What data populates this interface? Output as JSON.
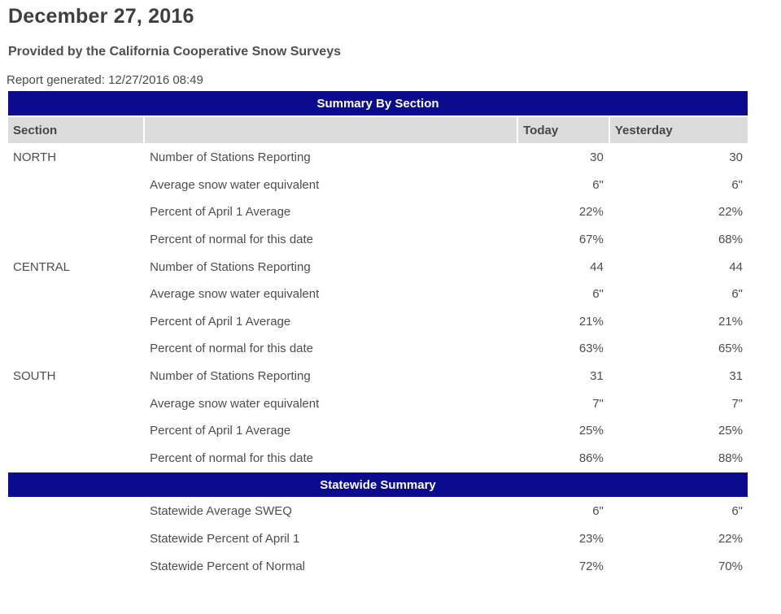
{
  "header": {
    "title": "December 27, 2016",
    "subtitle": "Provided by the California Cooperative Snow Surveys",
    "report_generated": "Report generated: 12/27/2016 08:49"
  },
  "colors": {
    "banner_bg": "#0b0b8f",
    "banner_text": "#ffffff",
    "column_header_bg": "#dcdcdc",
    "heading_text": "#3f3f3f",
    "body_text": "#4d4d4d"
  },
  "table": {
    "sections": [
      {
        "banner": "Summary By Section",
        "column_headers": [
          "Section",
          "",
          "Today",
          "Yesterday"
        ],
        "rows": [
          [
            "NORTH",
            "Number of Stations Reporting",
            "30",
            "30"
          ],
          [
            "",
            "Average snow water equivalent",
            "6\"",
            "6\""
          ],
          [
            "",
            "Percent of April 1 Average",
            "22%",
            "22%"
          ],
          [
            "",
            "Percent of normal for this date",
            "67%",
            "68%"
          ],
          [
            "CENTRAL",
            "Number of Stations Reporting",
            "44",
            "44"
          ],
          [
            "",
            "Average snow water equivalent",
            "6\"",
            "6\""
          ],
          [
            "",
            "Percent of April 1 Average",
            "21%",
            "21%"
          ],
          [
            "",
            "Percent of normal for this date",
            "63%",
            "65%"
          ],
          [
            "SOUTH",
            "Number of Stations Reporting",
            "31",
            "31"
          ],
          [
            "",
            "Average snow water equivalent",
            "7\"",
            "7\""
          ],
          [
            "",
            "Percent of April 1 Average",
            "25%",
            "25%"
          ],
          [
            "",
            "Percent of normal for this date",
            "86%",
            "88%"
          ]
        ]
      },
      {
        "banner": "Statewide Summary",
        "column_headers": null,
        "rows": [
          [
            "",
            "Statewide Average SWEQ",
            "6\"",
            "6\""
          ],
          [
            "",
            "Statewide Percent of April 1",
            "23%",
            "22%"
          ],
          [
            "",
            "Statewide Percent of Normal",
            "72%",
            "70%"
          ]
        ]
      }
    ]
  }
}
